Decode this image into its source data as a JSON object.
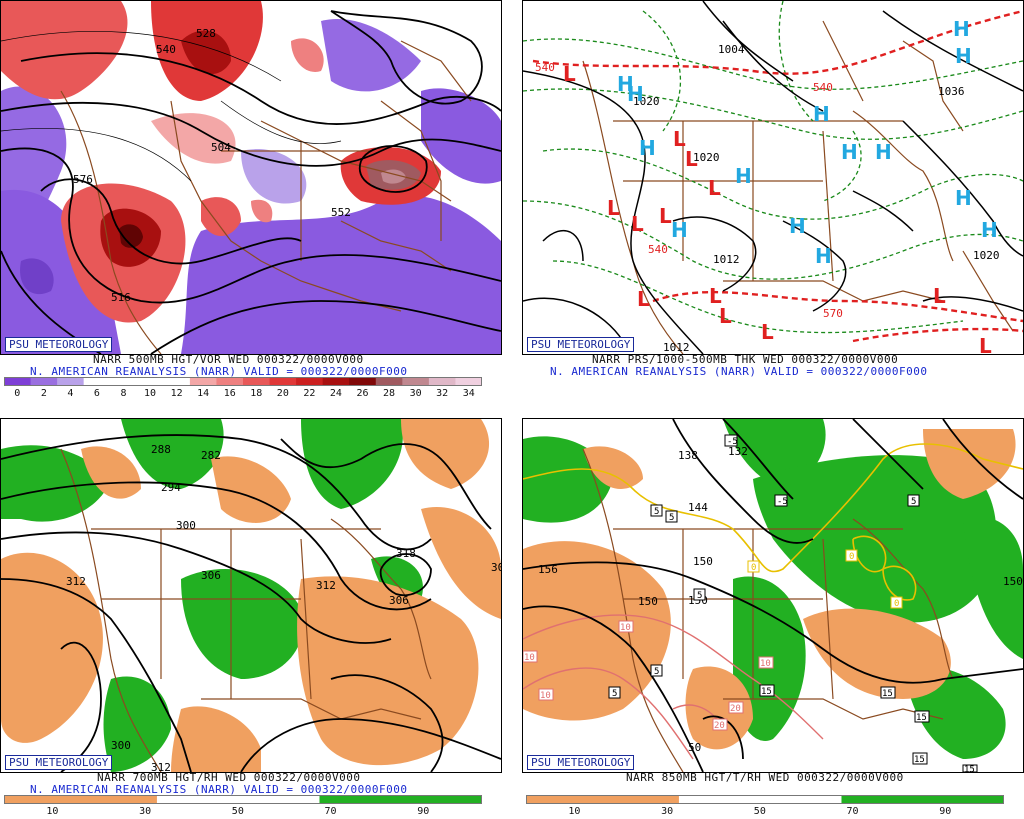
{
  "badge": "PSU METEOROLOGY",
  "panels": [
    {
      "caption1": "NARR 500MB HGT/VOR WED 000322/0000V000",
      "caption2": "N. AMERICAN REANALYSIS (NARR) VALID = 000322/0000F000",
      "colorbar_ticks": [
        "0",
        "2",
        "4",
        "6",
        "8",
        "10",
        "12",
        "14",
        "16",
        "18",
        "20",
        "22",
        "24",
        "26",
        "28",
        "30",
        "32",
        "34"
      ],
      "contour_labels": [
        "540",
        "528",
        "576",
        "516",
        "504",
        "552"
      ]
    },
    {
      "caption1": "NARR PRS/1000-500MB THK WED 000322/0000V000",
      "caption2": "N. AMERICAN REANALYSIS (NARR) VALID = 000322/0000F000",
      "contour_labels": [
        "1004",
        "1020",
        "1020",
        "1036",
        "1012",
        "1020",
        "540",
        "540",
        "570",
        "540",
        "1012"
      ],
      "high_symbol": "H",
      "low_symbol": "L"
    },
    {
      "caption1": "NARR 700MB HGT/RH WED 000322/0000V000",
      "caption2": "N. AMERICAN REANALYSIS (NARR) VALID = 000322/0000F000",
      "colorbar_ticks": [
        "10",
        "30",
        "50",
        "70",
        "90"
      ],
      "contour_labels": [
        "288",
        "282",
        "294",
        "300",
        "306",
        "312",
        "312",
        "318",
        "306",
        "300",
        "306",
        "312"
      ]
    },
    {
      "caption1": "NARR 850MB HGT/T/RH WED 000322/0000V000",
      "caption2": "",
      "colorbar_ticks": [
        "10",
        "30",
        "50",
        "70",
        "90"
      ],
      "contour_labels": [
        "138",
        "132",
        "144",
        "150",
        "156",
        "150",
        "150",
        "150",
        "-5",
        "-5",
        "5",
        "5",
        "5",
        "5",
        "5",
        "5",
        "10",
        "10",
        "10",
        "10",
        "15",
        "15",
        "15",
        "15",
        "15",
        "20",
        "20",
        "0",
        "0",
        "0",
        "50"
      ]
    }
  ],
  "colors": {
    "vort_scale": [
      "#7e3fd6",
      "#9a6fe0",
      "#b9a2ea",
      "#ffffff",
      "#ffffff",
      "#ffffff",
      "#ffffff",
      "#f3a7a7",
      "#ee8080",
      "#e85858",
      "#e03838",
      "#cc2020",
      "#a81010",
      "#800808",
      "#a05a60",
      "#c08890",
      "#e0b8c8",
      "#f0d0e0"
    ],
    "rh_dry": "#f0a060",
    "rh_wet": "#22b022",
    "map_lines": "#8a4a20",
    "high": "#22a8e0",
    "low": "#e02020",
    "thickness": "#e02020",
    "pressure": "#000000",
    "isotherm_cold": "#e8c000",
    "isotherm_warm": "#e07070"
  }
}
